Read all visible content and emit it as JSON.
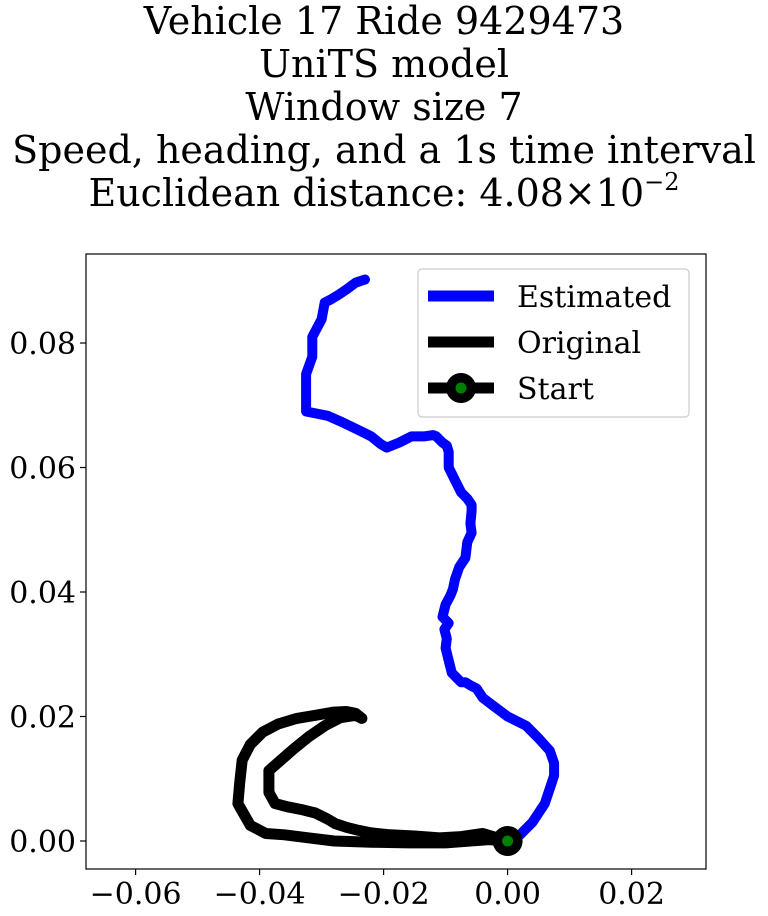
{
  "title_lines": [
    "Vehicle 17 Ride 9429473",
    "UniTS model",
    "Window size 7",
    "Speed, heading, and a 1s time interval"
  ],
  "title_distance_prefix": "Euclidean distance: 4.08",
  "title_distance_times": "×",
  "title_distance_base": "10",
  "title_distance_exponent": "−2",
  "chart_data": {
    "type": "line",
    "xlim": [
      -0.068,
      0.032
    ],
    "ylim": [
      -0.0045,
      0.0943
    ],
    "x_ticks": [
      -0.06,
      -0.04,
      -0.02,
      0.0,
      0.02
    ],
    "x_tick_labels": [
      "−0.06",
      "−0.04",
      "−0.02",
      "0.00",
      "0.02"
    ],
    "y_ticks": [
      0.0,
      0.02,
      0.04,
      0.06,
      0.08
    ],
    "y_tick_labels": [
      "0.00",
      "0.02",
      "0.04",
      "0.06",
      "0.08"
    ],
    "grid": false,
    "legend_position": "top-right",
    "colors": {
      "estimated": "#0000ff",
      "original": "#000000",
      "start_marker": "#008000"
    },
    "series": [
      {
        "name": "Estimated",
        "x": [
          0.0,
          0.002,
          0.004,
          0.006,
          0.007,
          0.0075,
          0.0075,
          0.0068,
          0.005,
          0.003,
          0.0,
          -0.002,
          -0.004,
          -0.005,
          -0.006,
          -0.0068,
          -0.0075,
          -0.008,
          -0.009,
          -0.0095,
          -0.01,
          -0.0098,
          -0.0102,
          -0.0095,
          -0.0105,
          -0.01,
          -0.0092,
          -0.0088,
          -0.0085,
          -0.0078,
          -0.0068,
          -0.0065,
          -0.0058,
          -0.006,
          -0.0058,
          -0.0058,
          -0.0065,
          -0.0075,
          -0.0085,
          -0.0095,
          -0.0095,
          -0.0098,
          -0.0105,
          -0.0115,
          -0.012,
          -0.0135,
          -0.0155,
          -0.0175,
          -0.0195,
          -0.0205,
          -0.022,
          -0.024,
          -0.0265,
          -0.029,
          -0.0325,
          -0.0325,
          -0.0325,
          -0.0315,
          -0.0315,
          -0.03,
          -0.0295,
          -0.0285,
          -0.0272,
          -0.026,
          -0.0245,
          -0.023
        ],
        "y": [
          0.0,
          0.001,
          0.003,
          0.006,
          0.009,
          0.0105,
          0.0125,
          0.0145,
          0.0165,
          0.0185,
          0.02,
          0.0215,
          0.023,
          0.0245,
          0.025,
          0.0255,
          0.0255,
          0.026,
          0.027,
          0.029,
          0.031,
          0.0325,
          0.034,
          0.035,
          0.036,
          0.038,
          0.0395,
          0.0405,
          0.042,
          0.044,
          0.0455,
          0.048,
          0.0495,
          0.051,
          0.053,
          0.054,
          0.055,
          0.056,
          0.058,
          0.06,
          0.0625,
          0.0635,
          0.064,
          0.065,
          0.0652,
          0.065,
          0.065,
          0.064,
          0.0632,
          0.0638,
          0.065,
          0.066,
          0.0672,
          0.0683,
          0.069,
          0.0725,
          0.075,
          0.0778,
          0.081,
          0.0838,
          0.0865,
          0.087,
          0.0878,
          0.0886,
          0.0897,
          0.0902
        ]
      },
      {
        "name": "Original",
        "x": [
          0.0,
          -0.003,
          -0.006,
          -0.01,
          -0.016,
          -0.022,
          -0.028,
          -0.032,
          -0.036,
          -0.039,
          -0.0415,
          -0.0435,
          -0.0432,
          -0.0428,
          -0.0415,
          -0.0395,
          -0.037,
          -0.034,
          -0.031,
          -0.028,
          -0.026,
          -0.0245,
          -0.0235,
          -0.0245,
          -0.027,
          -0.0295,
          -0.032,
          -0.0345,
          -0.0385,
          -0.0385,
          -0.0375,
          -0.0355,
          -0.033,
          -0.031,
          -0.029,
          -0.0278,
          -0.026,
          -0.024,
          -0.022,
          -0.019,
          -0.015,
          -0.011,
          -0.0075,
          -0.004,
          0.0
        ],
        "y": [
          0.0,
          0.0002,
          0.0,
          -0.0003,
          -0.0003,
          -0.0002,
          0.0,
          0.0005,
          0.001,
          0.0012,
          0.0025,
          0.006,
          0.0095,
          0.013,
          0.0155,
          0.0175,
          0.0188,
          0.0197,
          0.0202,
          0.0207,
          0.0208,
          0.0205,
          0.0197,
          0.0202,
          0.0198,
          0.0185,
          0.0168,
          0.0148,
          0.0113,
          0.0078,
          0.006,
          0.0055,
          0.005,
          0.0045,
          0.0035,
          0.0028,
          0.0022,
          0.0017,
          0.0013,
          0.001,
          0.0008,
          0.0005,
          0.0007,
          0.0012,
          0.0
        ]
      },
      {
        "name": "Start",
        "x": [
          0.0
        ],
        "y": [
          0.0
        ]
      }
    ]
  }
}
